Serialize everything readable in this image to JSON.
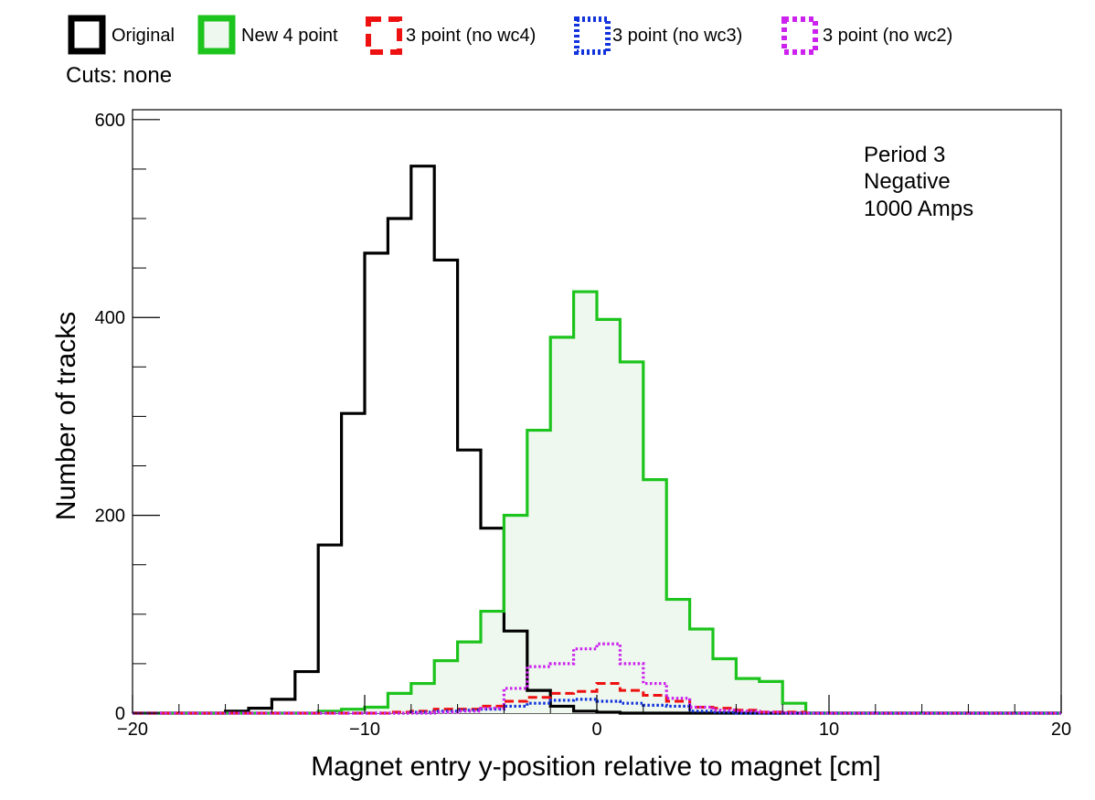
{
  "cuts_text": "Cuts: none",
  "annotation": [
    "Period 3",
    "Negative",
    "1000 Amps"
  ],
  "legend": [
    {
      "label": "Original",
      "color": "#000000",
      "dash": "solid",
      "fill": "none"
    },
    {
      "label": "New 4 point",
      "color": "#1dc41d",
      "dash": "solid",
      "fill": "#eef8ee"
    },
    {
      "label": "3 point (no wc4)",
      "color": "#ee1111",
      "dash": "dashed",
      "fill": "none"
    },
    {
      "label": "3 point (no wc3)",
      "color": "#1133dd",
      "dash": "dotted",
      "fill": "none"
    },
    {
      "label": "3 point (no wc2)",
      "color": "#cc22ee",
      "dash": "dotted",
      "fill": "none"
    }
  ],
  "chart_data": {
    "type": "histogram",
    "xlabel": "Magnet entry y-position relative to magnet [cm]",
    "ylabel": "Number of tracks",
    "xlim": [
      -20,
      20
    ],
    "ylim": [
      0,
      610
    ],
    "x_ticks": [
      -20,
      -10,
      0,
      10,
      20
    ],
    "x_tick_labels": [
      "−20",
      "−10",
      "0",
      "10",
      "20"
    ],
    "y_ticks": [
      0,
      200,
      400,
      600
    ],
    "y_tick_labels": [
      "0",
      "200",
      "400",
      "600"
    ],
    "bin_edges_start": -20,
    "bin_width": 1,
    "series": [
      {
        "name": "Original",
        "color": "#000000",
        "dash": "solid",
        "values": [
          0,
          0,
          0,
          0,
          2,
          5,
          14,
          42,
          170,
          303,
          465,
          500,
          553,
          458,
          266,
          187,
          83,
          23,
          7,
          2,
          1,
          0,
          0,
          0,
          0,
          0,
          0,
          0,
          0,
          0,
          0,
          0,
          0,
          0,
          0,
          0,
          0,
          0,
          0,
          0
        ]
      },
      {
        "name": "New 4 point",
        "color": "#1dc41d",
        "dash": "solid",
        "fill": "#eef8ee",
        "values": [
          0,
          0,
          0,
          0,
          0,
          0,
          0,
          0,
          2,
          4,
          6,
          20,
          30,
          53,
          72,
          103,
          200,
          286,
          380,
          426,
          398,
          355,
          236,
          115,
          85,
          55,
          35,
          32,
          10,
          0,
          0,
          0,
          0,
          0,
          0,
          0,
          0,
          0,
          0,
          0
        ]
      },
      {
        "name": "3 point (no wc4)",
        "color": "#ee1111",
        "dash": "dashed",
        "values": [
          0,
          0,
          0,
          0,
          0,
          0,
          0,
          0,
          0,
          0,
          0,
          1,
          2,
          4,
          4,
          7,
          12,
          16,
          20,
          22,
          30,
          23,
          18,
          12,
          6,
          5,
          3,
          1,
          1,
          0,
          0,
          0,
          0,
          0,
          0,
          0,
          0,
          0,
          0,
          0
        ]
      },
      {
        "name": "3 point (no wc3)",
        "color": "#1133dd",
        "dash": "dotted",
        "values": [
          0,
          0,
          0,
          0,
          0,
          0,
          0,
          0,
          0,
          0,
          0,
          0,
          1,
          2,
          3,
          4,
          7,
          10,
          13,
          14,
          12,
          10,
          8,
          7,
          2,
          1,
          0,
          0,
          0,
          0,
          0,
          0,
          0,
          0,
          0,
          0,
          0,
          0,
          0,
          0
        ]
      },
      {
        "name": "3 point (no wc2)",
        "color": "#cc22ee",
        "dash": "dotted",
        "values": [
          0,
          0,
          0,
          0,
          0,
          0,
          0,
          0,
          0,
          0,
          0,
          0,
          0,
          1,
          2,
          5,
          25,
          47,
          50,
          65,
          70,
          50,
          30,
          15,
          6,
          3,
          2,
          1,
          0,
          0,
          0,
          0,
          0,
          0,
          0,
          0,
          0,
          0,
          0,
          0
        ]
      }
    ]
  }
}
